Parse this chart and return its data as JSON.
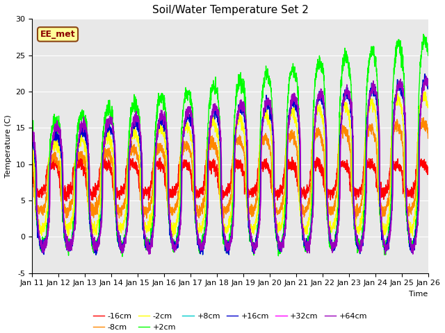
{
  "title": "Soil/Water Temperature Set 2",
  "xlabel": "Time",
  "ylabel": "Temperature (C)",
  "xlim": [
    0,
    15
  ],
  "ylim": [
    -5,
    30
  ],
  "xtick_labels": [
    "Jan 11",
    "Jan 12",
    "Jan 13",
    "Jan 14",
    "Jan 15",
    "Jan 16",
    "Jan 17",
    "Jan 18",
    "Jan 19",
    "Jan 20",
    "Jan 21",
    "Jan 22",
    "Jan 23",
    "Jan 24",
    "Jan 25",
    "Jan 26"
  ],
  "ytick_values": [
    -5,
    0,
    5,
    10,
    15,
    20,
    25,
    30
  ],
  "series": [
    {
      "label": "-16cm",
      "color": "#ff0000"
    },
    {
      "label": "-8cm",
      "color": "#ff8800"
    },
    {
      "label": "-2cm",
      "color": "#ffff00"
    },
    {
      "label": "+2cm",
      "color": "#00ff00"
    },
    {
      "label": "+8cm",
      "color": "#00cccc"
    },
    {
      "label": "+16cm",
      "color": "#0000cc"
    },
    {
      "label": "+32cm",
      "color": "#ff00ff"
    },
    {
      "label": "+64cm",
      "color": "#9900bb"
    }
  ],
  "annotation_text": "EE_met",
  "bg_color": "#e8e8e8",
  "title_fontsize": 11,
  "axis_fontsize": 8,
  "legend_fontsize": 8,
  "linewidth": 1.0,
  "dpi": 100
}
